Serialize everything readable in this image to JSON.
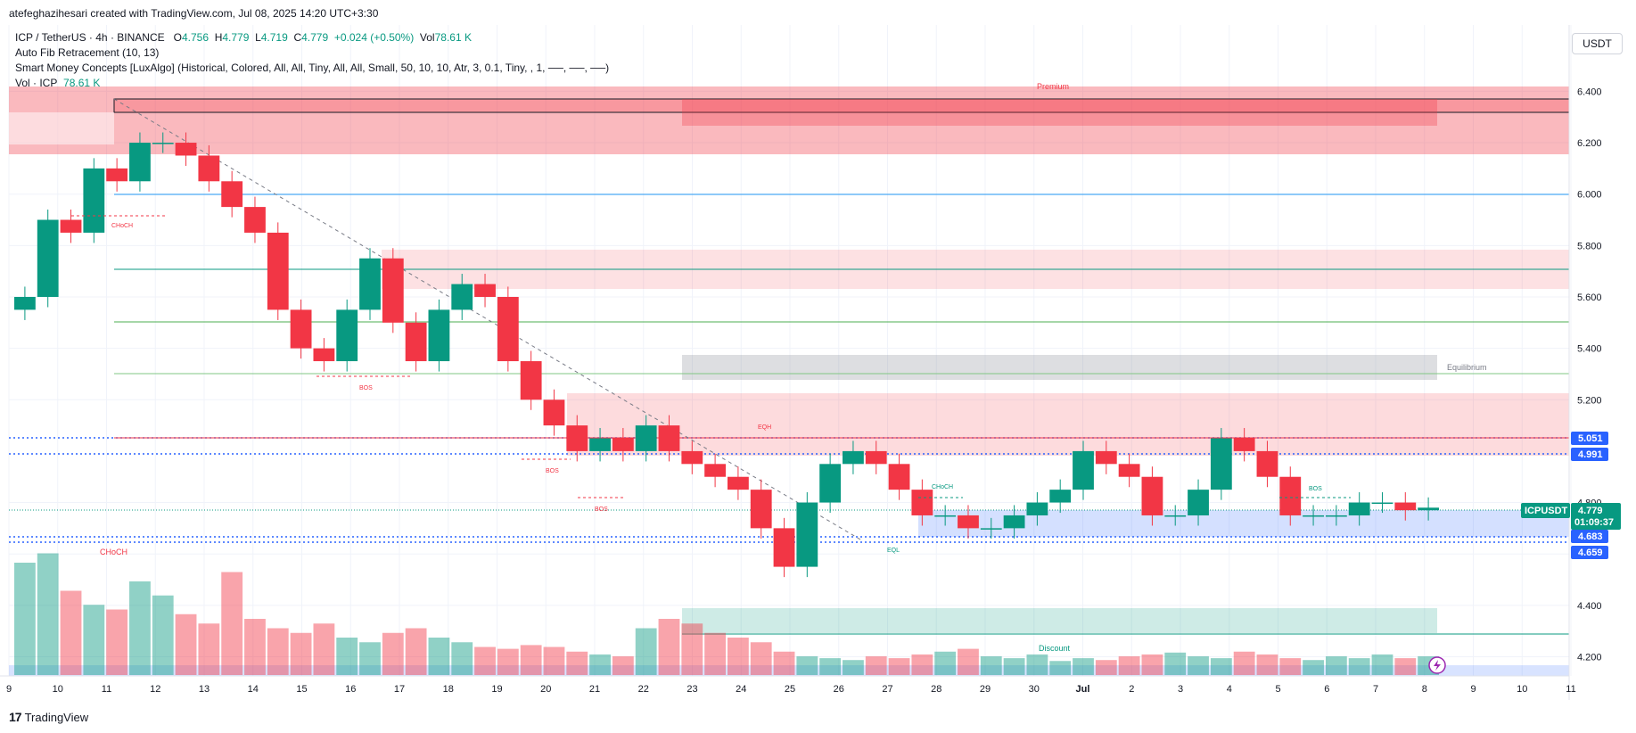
{
  "header": {
    "credit": "atefeghazihesari created with TradingView.com, Jul 08, 2025 14:20 UTC+3:30"
  },
  "legend": {
    "symbol": "ICP / TetherUS · 4h · BINANCE",
    "o_label": "O",
    "o_value": "4.756",
    "h_label": "H",
    "h_value": "4.779",
    "l_label": "L",
    "l_value": "4.719",
    "c_label": "C",
    "c_value": "4.779",
    "change": "+0.024 (+0.50%)",
    "vol_label": "Vol",
    "vol_value": "78.61 K",
    "fib": "Auto Fib Retracement (10, 13)",
    "smc": "Smart Money Concepts [LuxAlgo] (Historical, Colored, All, All, Tiny, All, All, Small, 50, 10, 10, Atr, 3, 0.1, Tiny, , 1, ──, ──, ──)",
    "vol_line_label": "Vol · ICP",
    "vol_line_value": "78.61 K"
  },
  "currency": "USDT",
  "footer": {
    "logo": "17",
    "brand": "TradingView"
  },
  "chart_data": {
    "type": "candlestick",
    "symbol": "ICPUSDT",
    "timeframe": "4h",
    "ylim": [
      4.16,
      6.45
    ],
    "y_ticks": [
      "6.400",
      "6.200",
      "6.000",
      "5.800",
      "5.600",
      "5.400",
      "5.200",
      "4.800",
      "4.600",
      "4.400",
      "4.200"
    ],
    "x_ticks": [
      "9",
      "10",
      "11",
      "12",
      "13",
      "14",
      "15",
      "16",
      "17",
      "18",
      "19",
      "20",
      "21",
      "22",
      "23",
      "24",
      "25",
      "26",
      "27",
      "28",
      "29",
      "30",
      "Jul",
      "2",
      "3",
      "4",
      "5",
      "6",
      "7",
      "8",
      "9",
      "10",
      "11"
    ],
    "price_tags": [
      {
        "label": "5.051",
        "color": "#2962ff"
      },
      {
        "label": "4.991",
        "color": "#2962ff"
      },
      {
        "label": "4.779",
        "color": "#089981"
      },
      {
        "label": "4.683",
        "color": "#2962ff"
      },
      {
        "label": "4.659",
        "color": "#2962ff"
      }
    ],
    "current_label": "ICPUSDT",
    "current_price": "4.779",
    "countdown": "01:09:37",
    "zone_labels": {
      "premium": "Premium",
      "equilibrium": "Equilibrium",
      "discount": "Discount"
    },
    "structure_labels": [
      "CHoCH",
      "BOS",
      "BOS",
      "BOS",
      "EQH",
      "CHoCH",
      "EQL",
      "BOS",
      "CHoCH"
    ],
    "closes": [
      5.6,
      5.9,
      5.85,
      6.1,
      6.05,
      6.2,
      6.2,
      6.15,
      6.05,
      5.95,
      5.85,
      5.55,
      5.4,
      5.35,
      5.55,
      5.75,
      5.5,
      5.35,
      5.55,
      5.65,
      5.6,
      5.35,
      5.2,
      5.1,
      5.0,
      5.05,
      5.0,
      5.1,
      5.0,
      4.95,
      4.9,
      4.85,
      4.7,
      4.55,
      4.8,
      4.95,
      5.0,
      4.95,
      4.85,
      4.75,
      4.75,
      4.7,
      4.7,
      4.75,
      4.8,
      4.85,
      5.0,
      4.95,
      4.9,
      4.75,
      4.75,
      4.85,
      5.05,
      5.0,
      4.9,
      4.75,
      4.75,
      4.75,
      4.8,
      4.8,
      4.77,
      4.78
    ],
    "volumes": [
      120,
      130,
      90,
      75,
      70,
      100,
      85,
      65,
      55,
      110,
      60,
      50,
      45,
      55,
      40,
      35,
      45,
      50,
      40,
      35,
      30,
      28,
      32,
      30,
      25,
      22,
      20,
      50,
      60,
      55,
      45,
      40,
      35,
      25,
      20,
      18,
      16,
      20,
      18,
      22,
      25,
      28,
      20,
      18,
      22,
      15,
      18,
      16,
      20,
      22,
      24,
      20,
      18,
      25,
      22,
      18,
      16,
      20,
      18,
      22,
      18,
      20
    ]
  }
}
